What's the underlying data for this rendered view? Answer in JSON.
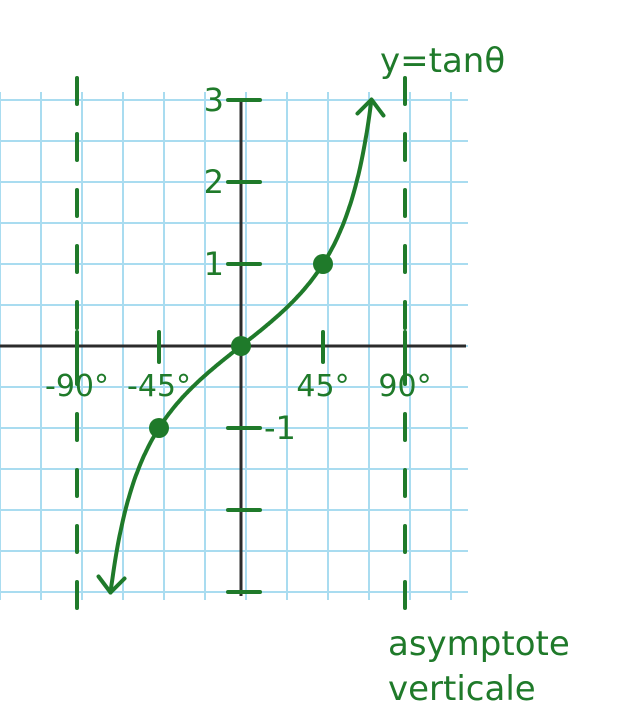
{
  "title": "y=tanθ",
  "note_line1": "asymptote",
  "note_line2": "verticale",
  "colors": {
    "ink": "#1f7a2a",
    "grid": "#a9dcf0",
    "axis": "#2b2b2b",
    "background": "#ffffff"
  },
  "chart_data": {
    "type": "line",
    "function": "tan",
    "x_unit": "degrees",
    "x_ticks": [
      {
        "value": -90,
        "label": "-90°"
      },
      {
        "value": -45,
        "label": "-45°"
      },
      {
        "value": 45,
        "label": "45°"
      },
      {
        "value": 90,
        "label": "90°"
      }
    ],
    "y_ticks": [
      {
        "value": 3,
        "label": "3"
      },
      {
        "value": 2,
        "label": "2"
      },
      {
        "value": 1,
        "label": "1"
      },
      {
        "value": -1,
        "label": "-1"
      },
      {
        "value": -2,
        "label": ""
      },
      {
        "value": -3,
        "label": ""
      }
    ],
    "points": [
      {
        "x": -45,
        "y": -1
      },
      {
        "x": 0,
        "y": 0
      },
      {
        "x": 45,
        "y": 1
      }
    ],
    "asymptotes": [
      -90,
      90
    ],
    "xlim": [
      -90,
      90
    ],
    "ylim": [
      -3,
      3
    ],
    "grid": true
  }
}
